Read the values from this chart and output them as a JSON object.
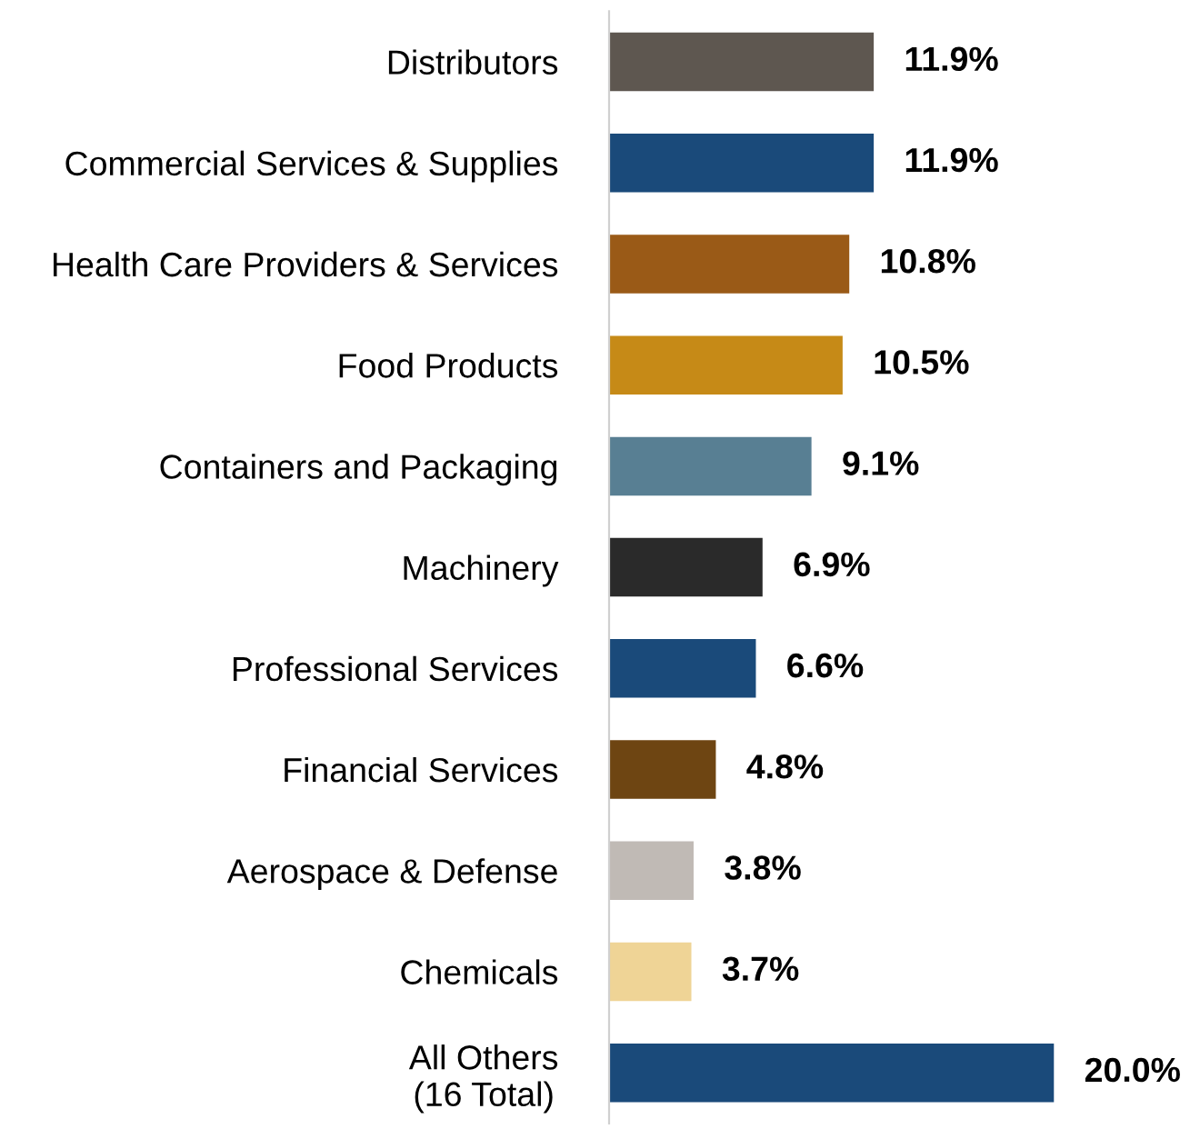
{
  "chart_data": {
    "type": "bar",
    "orientation": "horizontal",
    "data_labels": true,
    "grid": false,
    "legend": false,
    "categories": [
      "Distributors",
      "Commercial Services & Supplies",
      "Health Care Providers & Services",
      "Food Products",
      "Containers and Packaging",
      "Machinery",
      "Professional Services",
      "Financial Services",
      "Aerospace & Defense",
      "Chemicals",
      "All Others\n(16 Total)"
    ],
    "values": [
      11.9,
      11.9,
      10.8,
      10.5,
      9.1,
      6.9,
      6.6,
      4.8,
      3.8,
      3.7,
      20.0
    ],
    "value_labels": [
      "11.9%",
      "11.9%",
      "10.8%",
      "10.5%",
      "9.1%",
      "6.9%",
      "6.6%",
      "4.8%",
      "3.8%",
      "3.7%",
      "20.0%"
    ],
    "colors": [
      "#5e5750",
      "#1a4a7a",
      "#9a5a17",
      "#c68a17",
      "#587f93",
      "#2a2a2a",
      "#1a4a7a",
      "#6e4512",
      "#c0bab5",
      "#efd496",
      "#1a4a7a"
    ]
  }
}
